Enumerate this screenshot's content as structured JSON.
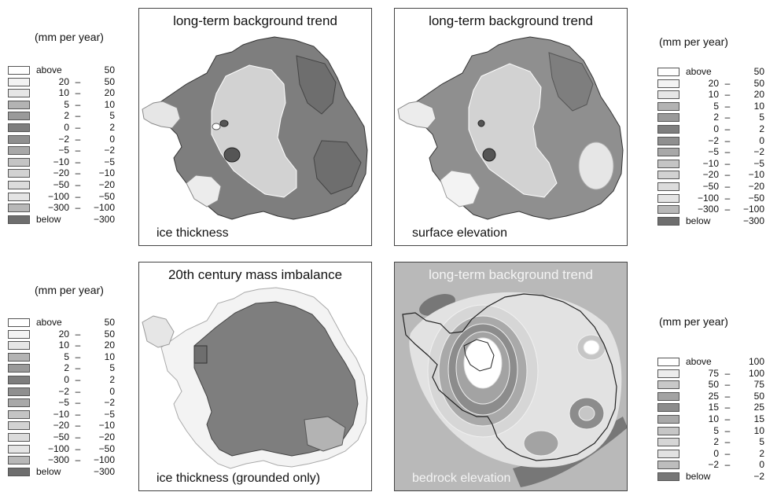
{
  "colors": {
    "panel_bg_dark": "#b9b9b9",
    "outline": "#222222"
  },
  "legends": [
    {
      "title": "(mm per year)",
      "rows": [
        {
          "a": "above",
          "dash": "",
          "b": "50",
          "color": "#ffffff"
        },
        {
          "a": "20",
          "dash": "–",
          "b": "50",
          "color": "#f3f3f3"
        },
        {
          "a": "10",
          "dash": "–",
          "b": "20",
          "color": "#e6e6e6"
        },
        {
          "a": "5",
          "dash": "–",
          "b": "10",
          "color": "#b3b3b3"
        },
        {
          "a": "2",
          "dash": "–",
          "b": "5",
          "color": "#9a9a9a"
        },
        {
          "a": "0",
          "dash": "–",
          "b": "2",
          "color": "#7e7e7e"
        },
        {
          "a": "−2",
          "dash": "–",
          "b": "0",
          "color": "#8f8f8f"
        },
        {
          "a": "−5",
          "dash": "–",
          "b": "−2",
          "color": "#a8a8a8"
        },
        {
          "a": "−10",
          "dash": "–",
          "b": "−5",
          "color": "#c4c4c4"
        },
        {
          "a": "−20",
          "dash": "–",
          "b": "−10",
          "color": "#d2d2d2"
        },
        {
          "a": "−50",
          "dash": "–",
          "b": "−20",
          "color": "#dcdcdc"
        },
        {
          "a": "−100",
          "dash": "–",
          "b": "−50",
          "color": "#e4e4e4"
        },
        {
          "a": "−300",
          "dash": "–",
          "b": "−100",
          "color": "#b8b8b8"
        },
        {
          "a": "below",
          "dash": "",
          "b": "−300",
          "color": "#6e6e6e"
        }
      ]
    },
    {
      "title": "(mm per year)",
      "rows": [
        {
          "a": "above",
          "dash": "",
          "b": "50",
          "color": "#ffffff"
        },
        {
          "a": "20",
          "dash": "–",
          "b": "50",
          "color": "#f3f3f3"
        },
        {
          "a": "10",
          "dash": "–",
          "b": "20",
          "color": "#e6e6e6"
        },
        {
          "a": "5",
          "dash": "–",
          "b": "10",
          "color": "#b3b3b3"
        },
        {
          "a": "2",
          "dash": "–",
          "b": "5",
          "color": "#9a9a9a"
        },
        {
          "a": "0",
          "dash": "–",
          "b": "2",
          "color": "#7e7e7e"
        },
        {
          "a": "−2",
          "dash": "–",
          "b": "0",
          "color": "#8f8f8f"
        },
        {
          "a": "−5",
          "dash": "–",
          "b": "−2",
          "color": "#a8a8a8"
        },
        {
          "a": "−10",
          "dash": "–",
          "b": "−5",
          "color": "#c4c4c4"
        },
        {
          "a": "−20",
          "dash": "–",
          "b": "−10",
          "color": "#d2d2d2"
        },
        {
          "a": "−50",
          "dash": "–",
          "b": "−20",
          "color": "#dcdcdc"
        },
        {
          "a": "−100",
          "dash": "–",
          "b": "−50",
          "color": "#e4e4e4"
        },
        {
          "a": "−300",
          "dash": "–",
          "b": "−100",
          "color": "#b8b8b8"
        },
        {
          "a": "below",
          "dash": "",
          "b": "−300",
          "color": "#6e6e6e"
        }
      ]
    },
    {
      "title": "(mm per year)",
      "rows": [
        {
          "a": "above",
          "dash": "",
          "b": "50",
          "color": "#ffffff"
        },
        {
          "a": "20",
          "dash": "–",
          "b": "50",
          "color": "#f3f3f3"
        },
        {
          "a": "10",
          "dash": "–",
          "b": "20",
          "color": "#e6e6e6"
        },
        {
          "a": "5",
          "dash": "–",
          "b": "10",
          "color": "#b3b3b3"
        },
        {
          "a": "2",
          "dash": "–",
          "b": "5",
          "color": "#9a9a9a"
        },
        {
          "a": "0",
          "dash": "–",
          "b": "2",
          "color": "#7e7e7e"
        },
        {
          "a": "−2",
          "dash": "–",
          "b": "0",
          "color": "#8f8f8f"
        },
        {
          "a": "−5",
          "dash": "–",
          "b": "−2",
          "color": "#a8a8a8"
        },
        {
          "a": "−10",
          "dash": "–",
          "b": "−5",
          "color": "#c4c4c4"
        },
        {
          "a": "−20",
          "dash": "–",
          "b": "−10",
          "color": "#d2d2d2"
        },
        {
          "a": "−50",
          "dash": "–",
          "b": "−20",
          "color": "#dcdcdc"
        },
        {
          "a": "−100",
          "dash": "–",
          "b": "−50",
          "color": "#e4e4e4"
        },
        {
          "a": "−300",
          "dash": "–",
          "b": "−100",
          "color": "#b8b8b8"
        },
        {
          "a": "below",
          "dash": "",
          "b": "−300",
          "color": "#6e6e6e"
        }
      ]
    },
    {
      "title": "(mm per year)",
      "rows": [
        {
          "a": "above",
          "dash": "",
          "b": "100",
          "color": "#ffffff"
        },
        {
          "a": "75",
          "dash": "–",
          "b": "100",
          "color": "#ececec"
        },
        {
          "a": "50",
          "dash": "–",
          "b": "75",
          "color": "#c8c8c8"
        },
        {
          "a": "25",
          "dash": "–",
          "b": "50",
          "color": "#a3a3a3"
        },
        {
          "a": "15",
          "dash": "–",
          "b": "25",
          "color": "#8c8c8c"
        },
        {
          "a": "10",
          "dash": "–",
          "b": "15",
          "color": "#a9a9a9"
        },
        {
          "a": "5",
          "dash": "–",
          "b": "10",
          "color": "#c6c6c6"
        },
        {
          "a": "2",
          "dash": "–",
          "b": "5",
          "color": "#d6d6d6"
        },
        {
          "a": "0",
          "dash": "–",
          "b": "2",
          "color": "#e2e2e2"
        },
        {
          "a": "−2",
          "dash": "–",
          "b": "0",
          "color": "#bdbdbd"
        },
        {
          "a": "below",
          "dash": "",
          "b": "−2",
          "color": "#777777"
        }
      ]
    }
  ],
  "panels": [
    {
      "title": "long-term background trend",
      "caption": "ice thickness"
    },
    {
      "title": "long-term background trend",
      "caption": "surface elevation"
    },
    {
      "title": "20th century mass imbalance",
      "caption": "ice thickness (grounded only)"
    },
    {
      "title": "long-term background trend",
      "caption": "bedrock elevation"
    }
  ]
}
